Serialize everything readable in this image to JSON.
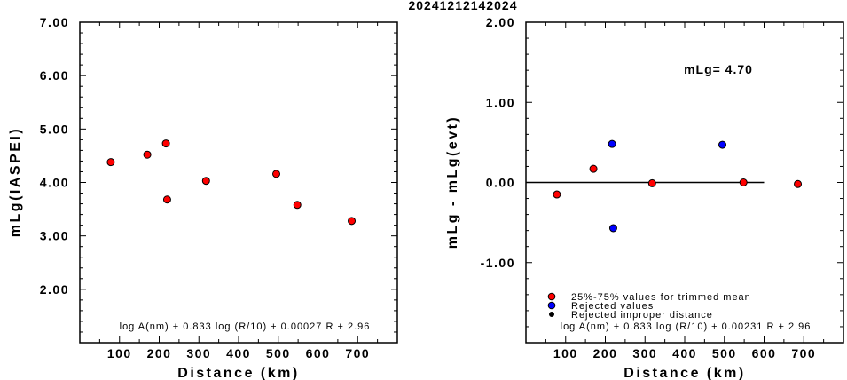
{
  "figure_title": "20241212142024",
  "chart_data": [
    {
      "type": "scatter",
      "xlabel": "Distance (km)",
      "ylabel": "mLg(IASPEI)",
      "xlim": [
        0,
        800
      ],
      "ylim": [
        1.0,
        7.0
      ],
      "xticks": [
        100,
        200,
        300,
        400,
        500,
        600,
        700
      ],
      "yticks": [
        "2.00",
        "3.00",
        "4.00",
        "5.00",
        "6.00",
        "7.00"
      ],
      "formula": "log A(nm) + 0.833 log (R/10) + 0.00027 R + 2.96",
      "points": [
        {
          "x": 78,
          "y": 4.38,
          "color": "#ff0000"
        },
        {
          "x": 170,
          "y": 4.52,
          "color": "#ff0000"
        },
        {
          "x": 217,
          "y": 4.73,
          "color": "#ff0000"
        },
        {
          "x": 220,
          "y": 3.68,
          "color": "#ff0000"
        },
        {
          "x": 318,
          "y": 4.03,
          "color": "#ff0000"
        },
        {
          "x": 495,
          "y": 4.16,
          "color": "#ff0000"
        },
        {
          "x": 548,
          "y": 3.58,
          "color": "#ff0000"
        },
        {
          "x": 685,
          "y": 3.28,
          "color": "#ff0000"
        }
      ]
    },
    {
      "type": "scatter",
      "xlabel": "Distance (km)",
      "ylabel": "mLg - mLg(evt)",
      "xlim": [
        0,
        800
      ],
      "ylim": [
        -2.0,
        2.0
      ],
      "xticks": [
        100,
        200,
        300,
        400,
        500,
        600,
        700
      ],
      "yticks": [
        "-1.00",
        "0.00",
        "1.00",
        "2.00"
      ],
      "reference_line": {
        "y": 0,
        "x_from": 0,
        "x_to": 600
      },
      "annotation": "mLg= 4.70",
      "formula": "log A(nm) + 0.833 log (R/10) + 0.00231 R  + 2.96",
      "legend": {
        "placement": "bottom-left",
        "entries": [
          {
            "label": "25%-75% values for trimmed mean",
            "color": "#ff0000"
          },
          {
            "label": "Rejected values",
            "color": "#0000ff"
          },
          {
            "label": "Rejected improper distance",
            "color": "#000000"
          }
        ]
      },
      "points": [
        {
          "x": 78,
          "y": -0.15,
          "color": "#ff0000"
        },
        {
          "x": 170,
          "y": 0.17,
          "color": "#ff0000"
        },
        {
          "x": 217,
          "y": 0.48,
          "color": "#0000ff"
        },
        {
          "x": 220,
          "y": -0.57,
          "color": "#0000ff"
        },
        {
          "x": 318,
          "y": -0.01,
          "color": "#ff0000"
        },
        {
          "x": 495,
          "y": 0.47,
          "color": "#0000ff"
        },
        {
          "x": 548,
          "y": 0.0,
          "color": "#ff0000"
        },
        {
          "x": 685,
          "y": -0.02,
          "color": "#ff0000"
        }
      ]
    }
  ]
}
